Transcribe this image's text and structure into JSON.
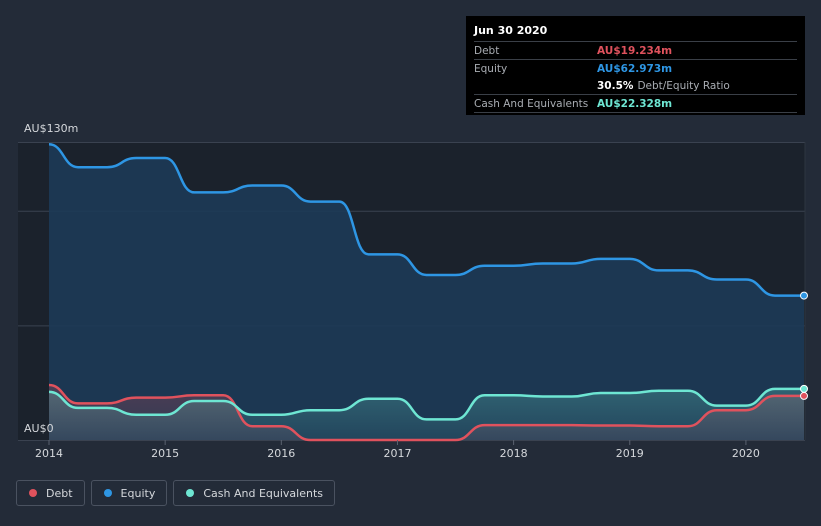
{
  "tooltip": {
    "date": "Jun 30 2020",
    "debt_label": "Debt",
    "debt_value": "AU$19.234m",
    "equity_label": "Equity",
    "equity_value": "AU$62.973m",
    "ratio_value": "30.5%",
    "ratio_label": "Debt/Equity Ratio",
    "cash_label": "Cash And Equivalents",
    "cash_value": "AU$22.328m"
  },
  "legend": {
    "debt": "Debt",
    "equity": "Equity",
    "cash": "Cash And Equivalents"
  },
  "colors": {
    "debt": "#e0525d",
    "equity": "#2e96e4",
    "cash": "#6ee6d3",
    "background": "#232b38"
  },
  "chart_data": {
    "type": "area",
    "x_unit": "year",
    "ylim": [
      0,
      130
    ],
    "y_tick_labels": [
      "AU$0",
      "AU$130m"
    ],
    "x_ticks": [
      2014,
      2015,
      2016,
      2017,
      2018,
      2019,
      2020
    ],
    "series": [
      {
        "name": "Equity",
        "x": [
          2014.0,
          2014.25,
          2014.5,
          2014.75,
          2015.0,
          2015.25,
          2015.5,
          2015.75,
          2016.0,
          2016.25,
          2016.5,
          2016.75,
          2017.0,
          2017.25,
          2017.5,
          2017.75,
          2018.0,
          2018.25,
          2018.5,
          2018.75,
          2019.0,
          2019.25,
          2019.5,
          2019.75,
          2020.0,
          2020.25,
          2020.5
        ],
        "values": [
          129,
          119,
          119,
          123,
          123,
          108,
          108,
          111,
          111,
          104,
          104,
          81,
          81,
          72,
          72,
          76,
          76,
          77,
          77,
          79,
          79,
          74,
          74,
          70,
          70,
          63,
          63
        ]
      },
      {
        "name": "Debt",
        "x": [
          2014.0,
          2014.25,
          2014.5,
          2014.75,
          2015.0,
          2015.25,
          2015.5,
          2015.75,
          2016.0,
          2016.25,
          2016.5,
          2016.75,
          2017.0,
          2017.25,
          2017.5,
          2017.75,
          2018.0,
          2018.25,
          2018.5,
          2018.75,
          2019.0,
          2019.25,
          2019.5,
          2019.75,
          2020.0,
          2020.25,
          2020.5
        ],
        "values": [
          24,
          16,
          16,
          18.5,
          18.5,
          19.5,
          19.5,
          6,
          6,
          0,
          0,
          0,
          0,
          0,
          0,
          6.5,
          6.5,
          6.5,
          6.5,
          6.3,
          6.3,
          6,
          6,
          13,
          13,
          19.234,
          19.234
        ]
      },
      {
        "name": "Cash And Equivalents",
        "x": [
          2014.0,
          2014.25,
          2014.5,
          2014.75,
          2015.0,
          2015.25,
          2015.5,
          2015.75,
          2016.0,
          2016.25,
          2016.5,
          2016.75,
          2017.0,
          2017.25,
          2017.5,
          2017.75,
          2018.0,
          2018.25,
          2018.5,
          2018.75,
          2019.0,
          2019.25,
          2019.5,
          2019.75,
          2020.0,
          2020.25,
          2020.5
        ],
        "values": [
          21,
          14,
          14,
          11,
          11,
          17,
          17,
          11,
          11,
          13,
          13,
          18,
          18,
          9,
          9,
          19.5,
          19.5,
          19,
          19,
          20.5,
          20.5,
          21.5,
          21.5,
          15,
          15,
          22.328,
          22.328
        ]
      }
    ]
  }
}
